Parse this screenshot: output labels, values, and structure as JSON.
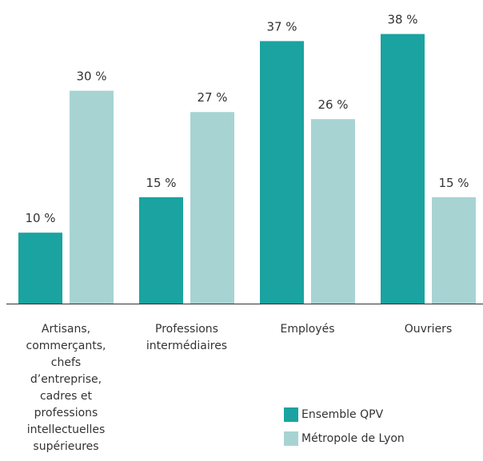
{
  "chart_data": {
    "type": "bar",
    "categories": [
      "Artisans, commerçants, chefs d’entreprise, cadres et professions intellectuelles supérieures",
      "Professions intermédiaires",
      "Employés",
      "Ouvriers"
    ],
    "series": [
      {
        "name": "Ensemble QPV",
        "color": "#1aa3a0",
        "values": [
          10,
          15,
          37,
          38
        ],
        "value_labels": [
          "10 %",
          "15 %",
          "37 %",
          "38 %"
        ]
      },
      {
        "name": "Métropole de Lyon",
        "color": "#a8d3d3",
        "values": [
          30,
          27,
          26,
          15
        ],
        "value_labels": [
          "30 %",
          "27 %",
          "26 %",
          "15 %"
        ]
      }
    ]
  }
}
